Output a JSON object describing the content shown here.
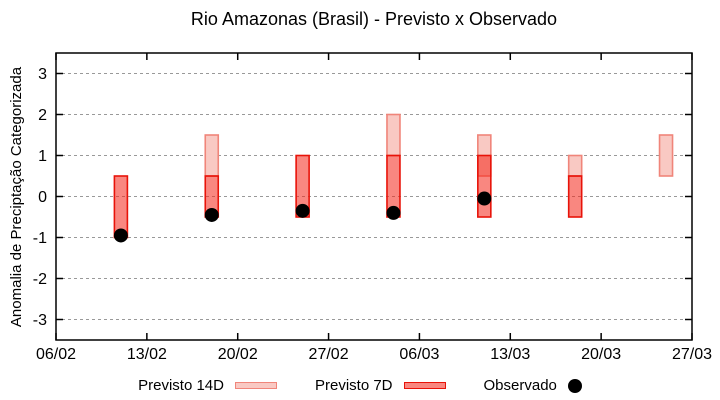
{
  "chart_data": {
    "type": "bar",
    "title": "Rio Amazonas (Brasil) - Previsto x Observado",
    "ylabel": "Anomalia de Preciptação Categorizada",
    "ylim": [
      -3.5,
      3.5
    ],
    "yticks": [
      3,
      2,
      1,
      0,
      -1,
      -2,
      -3
    ],
    "x_total_days": 49,
    "xticks": [
      {
        "day": 0,
        "label": "06/02"
      },
      {
        "day": 7,
        "label": "13/02"
      },
      {
        "day": 14,
        "label": "20/02"
      },
      {
        "day": 21,
        "label": "27/02"
      },
      {
        "day": 28,
        "label": "06/03"
      },
      {
        "day": 35,
        "label": "13/03"
      },
      {
        "day": 42,
        "label": "20/03"
      },
      {
        "day": 49,
        "label": "27/03"
      }
    ],
    "grid": true,
    "legend_position": "bottom",
    "colors": {
      "background": "#ffffff",
      "axis": "#000000",
      "grid": "#999999",
      "forecast14d_fill": "#f9c9c3",
      "forecast14d_stroke": "#f0857a",
      "forecast7d_fill": "rgba(244,37,24,0.55)",
      "forecast7d_stroke": "#e81309",
      "observed": "#000000"
    },
    "series": [
      {
        "name": "Previsto 14D",
        "type": "range-bar",
        "fill": "#f9c9c3",
        "stroke": "#f0857a",
        "points": [
          {
            "day": 12,
            "low": 0.5,
            "high": 1.5
          },
          {
            "day": 26,
            "low": 1.0,
            "high": 2.0
          },
          {
            "day": 33,
            "low": 0.5,
            "high": 1.5
          },
          {
            "day": 40,
            "low": 0.5,
            "high": 1.0
          },
          {
            "day": 47,
            "low": 0.5,
            "high": 1.5
          }
        ]
      },
      {
        "name": "Previsto 7D",
        "type": "range-bar",
        "fill": "rgba(244,37,24,0.55)",
        "stroke": "#e81309",
        "points": [
          {
            "day": 5,
            "low": -1.0,
            "high": 0.5
          },
          {
            "day": 12,
            "low": -0.5,
            "high": 0.5
          },
          {
            "day": 19,
            "low": -0.5,
            "high": 1.0
          },
          {
            "day": 26,
            "low": -0.5,
            "high": 1.0
          },
          {
            "day": 33,
            "low": -0.5,
            "high": 1.0
          },
          {
            "day": 40,
            "low": -0.5,
            "high": 0.5
          }
        ]
      },
      {
        "name": "Observado",
        "type": "scatter",
        "color": "#000000",
        "points": [
          {
            "day": 5,
            "value": -0.95
          },
          {
            "day": 12,
            "value": -0.45
          },
          {
            "day": 19,
            "value": -0.35
          },
          {
            "day": 26,
            "value": -0.4
          },
          {
            "day": 33,
            "value": -0.05
          }
        ]
      }
    ]
  },
  "legend": {
    "items": [
      {
        "label": "Previsto 14D"
      },
      {
        "label": "Previsto 7D"
      },
      {
        "label": "Observado"
      }
    ]
  }
}
